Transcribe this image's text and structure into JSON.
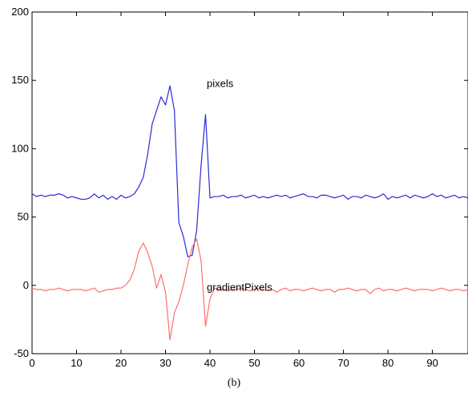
{
  "chart_data": {
    "type": "line",
    "title": "",
    "xlabel": "",
    "ylabel": "",
    "xlim": [
      0,
      98
    ],
    "ylim": [
      -50,
      200
    ],
    "xticks": [
      0,
      10,
      20,
      30,
      40,
      50,
      60,
      70,
      80,
      90
    ],
    "yticks": [
      -50,
      0,
      50,
      100,
      150,
      200
    ],
    "grid": false,
    "annotations": [
      {
        "text": "pixels",
        "x": 40,
        "y": 148
      },
      {
        "text": "gradientPixels",
        "x": 40,
        "y": -1
      }
    ],
    "series": [
      {
        "name": "pixels",
        "color": "#2b2bd6",
        "x": [
          0,
          1,
          2,
          3,
          4,
          5,
          6,
          7,
          8,
          9,
          10,
          11,
          12,
          13,
          14,
          15,
          16,
          17,
          18,
          19,
          20,
          21,
          22,
          23,
          24,
          25,
          26,
          27,
          28,
          29,
          30,
          31,
          32,
          33,
          34,
          35,
          36,
          37,
          38,
          39,
          40,
          41,
          42,
          43,
          44,
          45,
          46,
          47,
          48,
          49,
          50,
          51,
          52,
          53,
          54,
          55,
          56,
          57,
          58,
          59,
          60,
          61,
          62,
          63,
          64,
          65,
          66,
          67,
          68,
          69,
          70,
          71,
          72,
          73,
          74,
          75,
          76,
          77,
          78,
          79,
          80,
          81,
          82,
          83,
          84,
          85,
          86,
          87,
          88,
          89,
          90,
          91,
          92,
          93,
          94,
          95,
          96,
          97,
          98
        ],
        "values": [
          67,
          65,
          66,
          65,
          66,
          66,
          67,
          66,
          64,
          65,
          64,
          63,
          63,
          64,
          67,
          64,
          66,
          63,
          65,
          63,
          66,
          64,
          65,
          67,
          72,
          79,
          96,
          118,
          128,
          138,
          132,
          146,
          128,
          46,
          36,
          21,
          22,
          40,
          88,
          125,
          64,
          65,
          65,
          66,
          64,
          65,
          65,
          66,
          64,
          65,
          66,
          64,
          65,
          64,
          65,
          66,
          65,
          66,
          64,
          65,
          66,
          67,
          65,
          65,
          64,
          66,
          66,
          65,
          64,
          65,
          66,
          63,
          65,
          65,
          64,
          66,
          65,
          64,
          65,
          67,
          63,
          65,
          64,
          65,
          66,
          64,
          66,
          65,
          64,
          65,
          67,
          65,
          66,
          64,
          65,
          66,
          64,
          65,
          64
        ]
      },
      {
        "name": "gradientPixels",
        "color": "#ff6f6f",
        "x": [
          0,
          1,
          2,
          3,
          4,
          5,
          6,
          7,
          8,
          9,
          10,
          11,
          12,
          13,
          14,
          15,
          16,
          17,
          18,
          19,
          20,
          21,
          22,
          23,
          24,
          25,
          26,
          27,
          28,
          29,
          30,
          31,
          32,
          33,
          34,
          35,
          36,
          37,
          38,
          39,
          40,
          41,
          42,
          43,
          44,
          45,
          46,
          47,
          48,
          49,
          50,
          51,
          52,
          53,
          54,
          55,
          56,
          57,
          58,
          59,
          60,
          61,
          62,
          63,
          64,
          65,
          66,
          67,
          68,
          69,
          70,
          71,
          72,
          73,
          74,
          75,
          76,
          77,
          78,
          79,
          80,
          81,
          82,
          83,
          84,
          85,
          86,
          87,
          88,
          89,
          90,
          91,
          92,
          93,
          94,
          95,
          96,
          97,
          98
        ],
        "values": [
          -2,
          -3,
          -3,
          -4,
          -3,
          -3,
          -2,
          -3,
          -4,
          -3,
          -3,
          -3,
          -4,
          -3,
          -2,
          -5,
          -4,
          -3,
          -3,
          -2,
          -2,
          0,
          4,
          12,
          25,
          31,
          24,
          14,
          -2,
          8,
          -5,
          -40,
          -20,
          -12,
          0,
          15,
          28,
          34,
          18,
          -30,
          -10,
          -2,
          -3,
          -3,
          -4,
          -3,
          -3,
          -2,
          -3,
          -4,
          -3,
          -2,
          -3,
          -4,
          -3,
          -5,
          -3,
          -2,
          -4,
          -3,
          -3,
          -4,
          -3,
          -2,
          -3,
          -4,
          -3,
          -3,
          -5,
          -3,
          -3,
          -2,
          -3,
          -4,
          -3,
          -3,
          -6,
          -3,
          -2,
          -4,
          -3,
          -3,
          -4,
          -3,
          -2,
          -3,
          -4,
          -3,
          -3,
          -3,
          -4,
          -3,
          -2,
          -3,
          -4,
          -3,
          -3,
          -4,
          -3
        ]
      }
    ]
  },
  "caption": "(b)"
}
